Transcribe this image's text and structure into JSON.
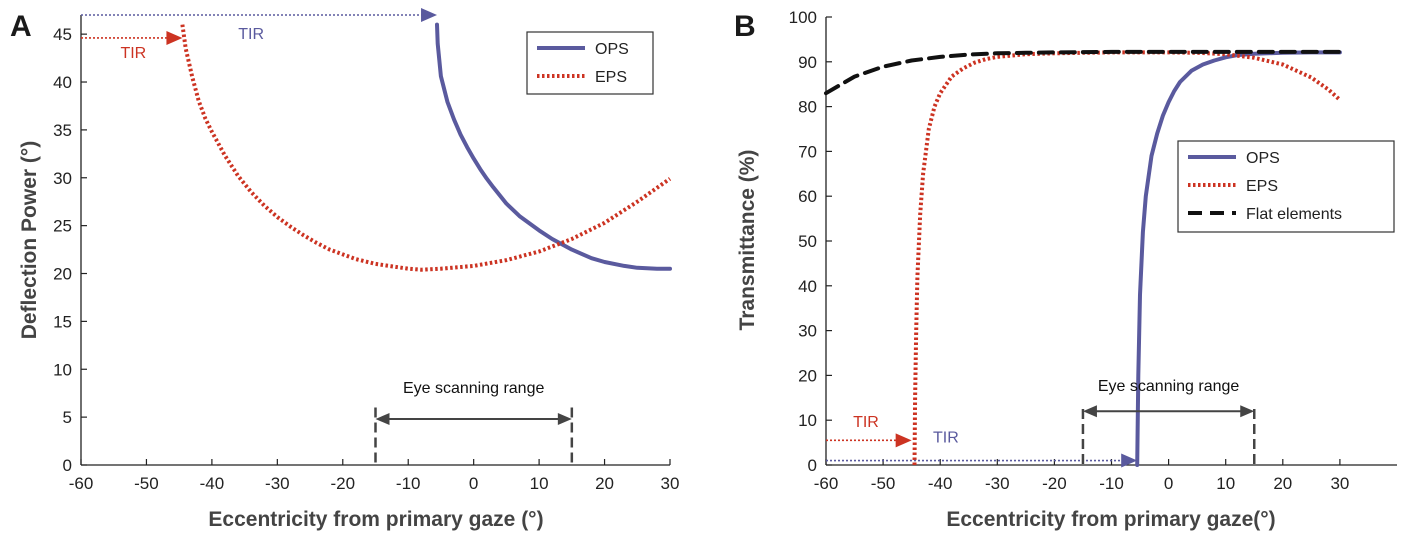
{
  "colors": {
    "ops": "#5a5a9e",
    "eps": "#cc3322",
    "flat": "#111111",
    "axis": "#222222",
    "range": "#444444"
  },
  "chart_data": [
    {
      "type": "line",
      "panel_label": "A",
      "xlabel": "Eccentricity from primary gaze (°)",
      "ylabel": "Deflection Power (°)",
      "xlim": [
        -60,
        30
      ],
      "ylim": [
        0,
        47
      ],
      "xticks": [
        -60,
        -50,
        -40,
        -30,
        -20,
        -10,
        0,
        10,
        20,
        30
      ],
      "yticks": [
        0,
        5,
        10,
        15,
        20,
        25,
        30,
        35,
        40,
        45
      ],
      "legend_position": "top-right",
      "series": [
        {
          "name": "OPS",
          "style": "solid",
          "x": [
            -5.6,
            -5.5,
            -5,
            -4,
            -3,
            -2,
            -1,
            0,
            1,
            2,
            3,
            5,
            7,
            10,
            12,
            15,
            18,
            20,
            23,
            25,
            28,
            30
          ],
          "y": [
            46,
            44,
            40.6,
            37.9,
            36.1,
            34.5,
            33.2,
            32,
            30.9,
            29.9,
            29,
            27.3,
            26,
            24.5,
            23.6,
            22.5,
            21.6,
            21.2,
            20.8,
            20.6,
            20.5,
            20.5
          ]
        },
        {
          "name": "EPS",
          "style": "dotted",
          "x": [
            -44.5,
            -44,
            -43,
            -42,
            -41,
            -40,
            -38,
            -36,
            -34,
            -32,
            -30,
            -28,
            -26,
            -24,
            -22,
            -20,
            -18,
            -15,
            -12,
            -10,
            -8,
            -5,
            0,
            5,
            10,
            15,
            20,
            25,
            30
          ],
          "y": [
            46,
            43.5,
            40.5,
            38,
            36.2,
            34.8,
            32.3,
            30.2,
            28.5,
            27.1,
            25.9,
            24.9,
            24,
            23.2,
            22.5,
            22,
            21.5,
            21,
            20.7,
            20.5,
            20.4,
            20.5,
            20.8,
            21.4,
            22.3,
            23.6,
            25.3,
            27.5,
            29.9
          ]
        }
      ],
      "annotations": [
        {
          "text": "TIR",
          "color": "eps",
          "x": -52,
          "y": 42.5
        },
        {
          "text": "TIR",
          "color": "ops",
          "x": -34,
          "y": 44.5
        },
        {
          "text": "Eye scanning range",
          "x": 0,
          "y": 7.5
        }
      ],
      "tir_arrows": [
        {
          "color": "eps",
          "y": 44.6,
          "x_from": -60,
          "x_to": -44.5
        },
        {
          "color": "ops",
          "y": 47.0,
          "x_from": -60,
          "x_to": -5.6
        }
      ],
      "range_markers": {
        "x1": -15,
        "x2": 15,
        "y_top": 6,
        "y_arrow": 4.8
      }
    },
    {
      "type": "line",
      "panel_label": "B",
      "xlabel": "Eccentricity from primary gaze(°)",
      "ylabel": "Transmittance (%)",
      "xlim": [
        -60,
        40
      ],
      "ylim": [
        0,
        100
      ],
      "xticks": [
        -60,
        -50,
        -40,
        -30,
        -20,
        -10,
        0,
        10,
        20,
        30
      ],
      "yticks": [
        0,
        10,
        20,
        30,
        40,
        50,
        60,
        70,
        80,
        90,
        100
      ],
      "legend_position": "center-right",
      "series": [
        {
          "name": "OPS",
          "style": "solid",
          "x": [
            -5.5,
            -5.3,
            -5,
            -4.5,
            -4,
            -3,
            -2,
            -1,
            0,
            1,
            2,
            4,
            6,
            8,
            10,
            12,
            15,
            20,
            25,
            30
          ],
          "y": [
            0,
            20,
            38,
            52,
            60,
            69,
            74,
            78,
            81,
            83.5,
            85.5,
            88,
            89.4,
            90.3,
            91,
            91.5,
            91.8,
            92,
            92.1,
            92.1
          ]
        },
        {
          "name": "EPS",
          "style": "dotted",
          "x": [
            -44.5,
            -44.4,
            -44.2,
            -44,
            -43.5,
            -43,
            -42,
            -41,
            -40,
            -38,
            -36,
            -34,
            -32,
            -30,
            -25,
            -20,
            -15,
            -10,
            -5,
            0,
            5,
            10,
            15,
            20,
            25,
            28,
            30
          ],
          "y": [
            0,
            15,
            30,
            42,
            56,
            65,
            75,
            80,
            83,
            86.7,
            88.5,
            89.8,
            90.6,
            91.1,
            91.7,
            91.9,
            92,
            92.1,
            92.1,
            92.1,
            92,
            91.7,
            90.9,
            89.4,
            86.5,
            83.8,
            81.5
          ]
        },
        {
          "name": "Flat elements",
          "style": "dashed",
          "x": [
            -60,
            -55,
            -50,
            -45,
            -40,
            -35,
            -30,
            -25,
            -20,
            -10,
            0,
            10,
            20,
            30
          ],
          "y": [
            83,
            86.7,
            88.9,
            90.3,
            91.1,
            91.6,
            91.9,
            92,
            92.1,
            92.2,
            92.2,
            92.2,
            92.2,
            92.2
          ]
        }
      ],
      "annotations": [
        {
          "text": "TIR",
          "color": "eps",
          "x": -53,
          "y": 8.5
        },
        {
          "text": "TIR",
          "color": "ops",
          "x": -39,
          "y": 5
        },
        {
          "text": "Eye scanning range",
          "x": 0,
          "y": 16.5
        }
      ],
      "tir_arrows": [
        {
          "color": "eps",
          "y": 5.5,
          "x_from": -60,
          "x_to": -45
        },
        {
          "color": "ops",
          "y": 1,
          "x_from": -60,
          "x_to": -5.5
        }
      ],
      "range_markers": {
        "x1": -15,
        "x2": 15,
        "y_top": 12.5,
        "y_arrow": 12
      }
    }
  ]
}
